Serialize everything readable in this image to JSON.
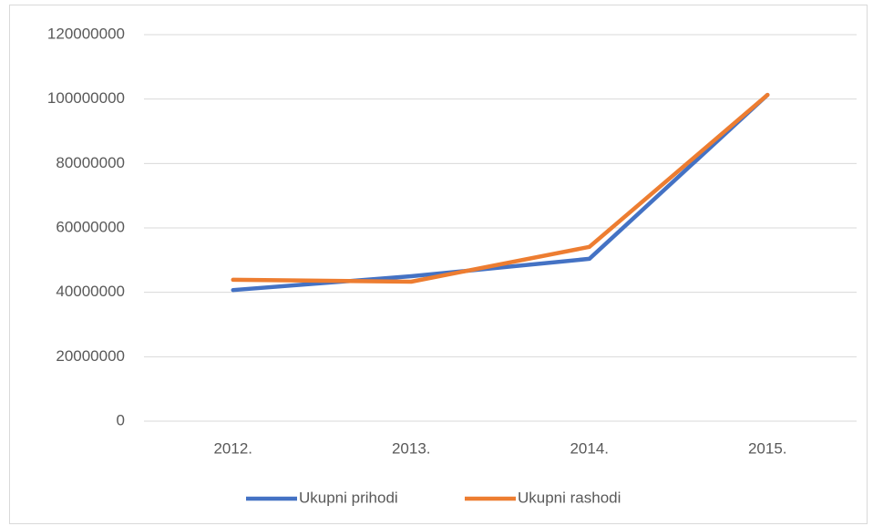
{
  "chart_data": {
    "type": "line",
    "categories": [
      "2012.",
      "2013.",
      "2014.",
      "2015."
    ],
    "series": [
      {
        "name": "Ukupni prihodi",
        "color": "#4472c4",
        "values": [
          40700000,
          45000000,
          50400000,
          101300000
        ]
      },
      {
        "name": "Ukupni rashodi",
        "color": "#ed7d31",
        "values": [
          43900000,
          43300000,
          54100000,
          101300000
        ]
      }
    ],
    "ylim": [
      0,
      120000000
    ],
    "yticks": [
      0,
      20000000,
      40000000,
      60000000,
      80000000,
      100000000,
      120000000
    ],
    "grid": true,
    "legend": "bottom"
  }
}
